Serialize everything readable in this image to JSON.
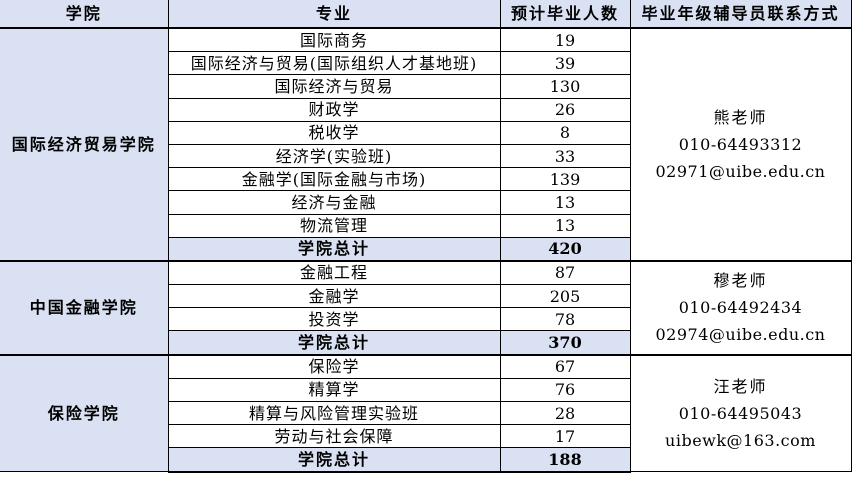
{
  "table": {
    "headers": [
      "学院",
      "专业",
      "预计毕业人数",
      "毕业年级辅导员联系方式"
    ],
    "sections": [
      {
        "college": "国际经济贸易学院",
        "majors": [
          {
            "name": "国际商务",
            "count": "19"
          },
          {
            "name": "国际经济与贸易(国际组织人才基地班)",
            "count": "39"
          },
          {
            "name": "国际经济与贸易",
            "count": "130"
          },
          {
            "name": "财政学",
            "count": "26"
          },
          {
            "name": "税收学",
            "count": "8"
          },
          {
            "name": "经济学(实验班)",
            "count": "33"
          },
          {
            "name": "金融学(国际金融与市场)",
            "count": "139"
          },
          {
            "name": "经济与金融",
            "count": "13"
          },
          {
            "name": "物流管理",
            "count": "13"
          }
        ],
        "total_label": "学院总计",
        "total": "420",
        "contact": {
          "teacher": "熊老师",
          "phone": "010-64493312",
          "email": "02971@uibe.edu.cn"
        }
      },
      {
        "college": "中国金融学院",
        "majors": [
          {
            "name": "金融工程",
            "count": "87"
          },
          {
            "name": "金融学",
            "count": "205"
          },
          {
            "name": "投资学",
            "count": "78"
          }
        ],
        "total_label": "学院总计",
        "total": "370",
        "contact": {
          "teacher": "穆老师",
          "phone": "010-64492434",
          "email": "02974@uibe.edu.cn"
        }
      },
      {
        "college": "保险学院",
        "majors": [
          {
            "name": "保险学",
            "count": "67"
          },
          {
            "name": "精算学",
            "count": "76"
          },
          {
            "name": "精算与风险管理实验班",
            "count": "28"
          },
          {
            "name": "劳动与社会保障",
            "count": "17"
          }
        ],
        "total_label": "学院总计",
        "total": "188",
        "contact": {
          "teacher": "汪老师",
          "phone": "010-64495043",
          "email": "uibewk@163.com"
        }
      }
    ],
    "colors": {
      "highlight": "#d9e1f2",
      "border": "#000000",
      "background": "#ffffff"
    }
  }
}
